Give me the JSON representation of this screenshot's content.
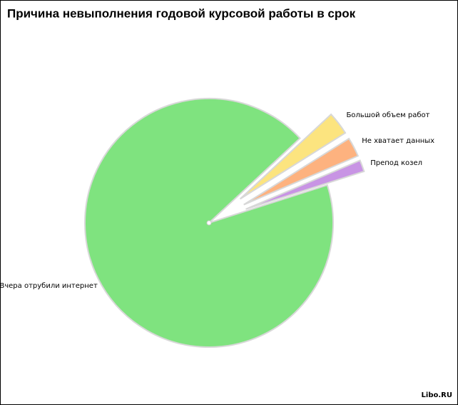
{
  "chart_data": {
    "type": "pie",
    "title": "Причина невыполнения годовой курсовой работы в срок",
    "categories": [
      "Вчера отрубили интернет",
      "Большой объем работ",
      "Не хватает данных",
      "Препод козел"
    ],
    "values": [
      93,
      3,
      2.5,
      1.5
    ],
    "colors": [
      "#7fe37f",
      "#fce47f",
      "#fdb27f",
      "#c894e4"
    ],
    "source": "Libo.RU"
  }
}
